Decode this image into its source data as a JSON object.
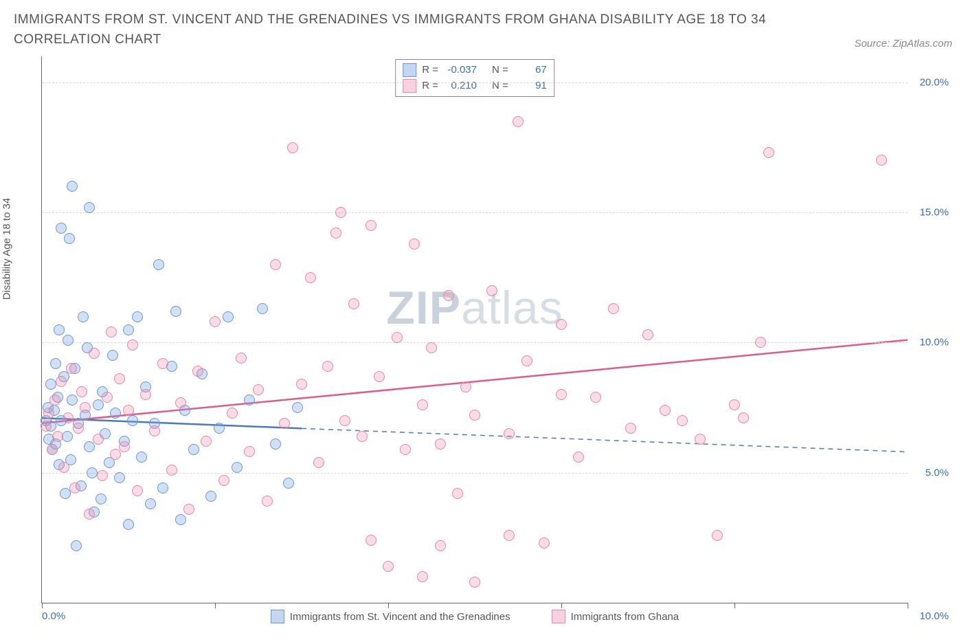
{
  "title": "IMMIGRANTS FROM ST. VINCENT AND THE GRENADINES VS IMMIGRANTS FROM GHANA DISABILITY AGE 18 TO 34 CORRELATION CHART",
  "source": "Source: ZipAtlas.com",
  "y_axis_label": "Disability Age 18 to 34",
  "watermark_a": "ZIP",
  "watermark_b": "atlas",
  "chart": {
    "type": "scatter",
    "xlim": [
      0,
      10
    ],
    "ylim": [
      0,
      21
    ],
    "x_ticks": [
      0,
      2,
      4,
      6,
      8,
      10
    ],
    "x_tick_labels": {
      "first": "0.0%",
      "last": "10.0%"
    },
    "y_ticks": [
      5,
      10,
      15,
      20
    ],
    "y_tick_labels": [
      "5.0%",
      "10.0%",
      "15.0%",
      "20.0%"
    ],
    "background_color": "#ffffff",
    "grid_color": "#d8d8d8",
    "axis_color": "#666666",
    "point_radius": 8,
    "colors": {
      "blue_fill": "rgba(121,167,225,0.35)",
      "blue_stroke": "#6a98d4",
      "pink_fill": "rgba(236,140,170,0.30)",
      "pink_stroke": "#e787a5",
      "label_text": "#3b6fb6"
    }
  },
  "series": [
    {
      "key": "svg",
      "label": "Immigrants from St. Vincent and the Grenadines",
      "color_class": "blue",
      "R_label": "R =",
      "R": "-0.037",
      "N_label": "N =",
      "N": "67",
      "regression": {
        "x1": 0,
        "y1": 7.1,
        "x2": 3.0,
        "y2": 6.7,
        "extend_x": 10,
        "extend_y": 5.8,
        "stroke": "#4a7ab8",
        "width": 2.5
      },
      "points": [
        [
          0.05,
          7.0
        ],
        [
          0.07,
          7.5
        ],
        [
          0.08,
          6.3
        ],
        [
          0.1,
          8.4
        ],
        [
          0.1,
          6.8
        ],
        [
          0.12,
          5.9
        ],
        [
          0.14,
          7.4
        ],
        [
          0.16,
          9.2
        ],
        [
          0.16,
          6.1
        ],
        [
          0.18,
          7.9
        ],
        [
          0.2,
          5.3
        ],
        [
          0.22,
          14.4
        ],
        [
          0.22,
          7.0
        ],
        [
          0.25,
          8.7
        ],
        [
          0.27,
          4.2
        ],
        [
          0.29,
          6.4
        ],
        [
          0.3,
          10.1
        ],
        [
          0.32,
          14.0
        ],
        [
          0.33,
          5.5
        ],
        [
          0.35,
          7.8
        ],
        [
          0.38,
          9.0
        ],
        [
          0.4,
          2.2
        ],
        [
          0.42,
          6.9
        ],
        [
          0.45,
          4.5
        ],
        [
          0.48,
          11.0
        ],
        [
          0.5,
          7.2
        ],
        [
          0.52,
          9.8
        ],
        [
          0.55,
          6.0
        ],
        [
          0.58,
          5.0
        ],
        [
          0.6,
          3.5
        ],
        [
          0.55,
          15.2
        ],
        [
          0.65,
          7.6
        ],
        [
          0.68,
          4.0
        ],
        [
          0.7,
          8.1
        ],
        [
          0.73,
          6.5
        ],
        [
          0.78,
          5.4
        ],
        [
          0.82,
          9.5
        ],
        [
          0.85,
          7.3
        ],
        [
          0.9,
          4.8
        ],
        [
          0.95,
          6.2
        ],
        [
          1.0,
          3.0
        ],
        [
          1.0,
          10.5
        ],
        [
          1.05,
          7.0
        ],
        [
          1.1,
          11.0
        ],
        [
          1.15,
          5.6
        ],
        [
          1.2,
          8.3
        ],
        [
          1.25,
          3.8
        ],
        [
          1.3,
          6.9
        ],
        [
          1.35,
          13.0
        ],
        [
          1.4,
          4.4
        ],
        [
          1.5,
          9.1
        ],
        [
          1.55,
          11.2
        ],
        [
          1.6,
          3.2
        ],
        [
          1.65,
          7.4
        ],
        [
          1.75,
          5.9
        ],
        [
          1.85,
          8.8
        ],
        [
          1.95,
          4.1
        ],
        [
          2.05,
          6.7
        ],
        [
          2.15,
          11.0
        ],
        [
          2.25,
          5.2
        ],
        [
          2.4,
          7.8
        ],
        [
          2.55,
          11.3
        ],
        [
          2.7,
          6.1
        ],
        [
          2.85,
          4.6
        ],
        [
          2.95,
          7.5
        ],
        [
          0.35,
          16.0
        ],
        [
          0.2,
          10.5
        ]
      ]
    },
    {
      "key": "ghana",
      "label": "Immigrants from Ghana",
      "color_class": "pink",
      "R_label": "R =",
      "R": "0.210",
      "N_label": "N =",
      "N": "91",
      "regression": {
        "x1": 0,
        "y1": 6.9,
        "x2": 10,
        "y2": 10.1,
        "stroke": "#e15b84",
        "width": 2.5
      },
      "points": [
        [
          0.05,
          6.8
        ],
        [
          0.08,
          7.3
        ],
        [
          0.12,
          5.9
        ],
        [
          0.15,
          7.8
        ],
        [
          0.18,
          6.4
        ],
        [
          0.22,
          8.5
        ],
        [
          0.25,
          5.2
        ],
        [
          0.3,
          7.1
        ],
        [
          0.34,
          9.0
        ],
        [
          0.38,
          4.4
        ],
        [
          0.42,
          6.7
        ],
        [
          0.46,
          8.1
        ],
        [
          0.5,
          7.5
        ],
        [
          0.55,
          3.4
        ],
        [
          0.6,
          9.6
        ],
        [
          0.65,
          6.3
        ],
        [
          0.7,
          4.9
        ],
        [
          0.75,
          7.9
        ],
        [
          0.8,
          10.4
        ],
        [
          0.85,
          5.7
        ],
        [
          0.9,
          8.6
        ],
        [
          0.95,
          6.0
        ],
        [
          1.0,
          7.4
        ],
        [
          1.05,
          9.9
        ],
        [
          1.1,
          4.3
        ],
        [
          1.2,
          8.0
        ],
        [
          1.3,
          6.6
        ],
        [
          1.4,
          9.2
        ],
        [
          1.5,
          5.1
        ],
        [
          1.6,
          7.7
        ],
        [
          1.7,
          3.6
        ],
        [
          1.8,
          8.9
        ],
        [
          1.9,
          6.2
        ],
        [
          2.0,
          10.8
        ],
        [
          2.1,
          4.7
        ],
        [
          2.2,
          7.3
        ],
        [
          2.3,
          9.4
        ],
        [
          2.4,
          5.8
        ],
        [
          2.5,
          8.2
        ],
        [
          2.6,
          3.9
        ],
        [
          2.7,
          13.0
        ],
        [
          2.8,
          6.9
        ],
        [
          2.9,
          17.5
        ],
        [
          3.0,
          8.4
        ],
        [
          3.1,
          12.5
        ],
        [
          3.2,
          5.4
        ],
        [
          3.3,
          9.1
        ],
        [
          3.4,
          14.2
        ],
        [
          3.5,
          7.0
        ],
        [
          3.6,
          11.5
        ],
        [
          3.45,
          15.0
        ],
        [
          3.7,
          6.4
        ],
        [
          3.8,
          14.5
        ],
        [
          3.9,
          8.7
        ],
        [
          4.0,
          1.4
        ],
        [
          4.1,
          10.2
        ],
        [
          4.2,
          5.9
        ],
        [
          4.3,
          13.8
        ],
        [
          4.4,
          7.6
        ],
        [
          4.4,
          1.0
        ],
        [
          4.5,
          9.8
        ],
        [
          4.6,
          6.1
        ],
        [
          4.7,
          11.8
        ],
        [
          4.8,
          4.2
        ],
        [
          4.9,
          8.3
        ],
        [
          5.0,
          7.2
        ],
        [
          5.2,
          12.0
        ],
        [
          5.4,
          6.5
        ],
        [
          5.6,
          9.3
        ],
        [
          5.8,
          2.3
        ],
        [
          5.5,
          18.5
        ],
        [
          5.0,
          0.8
        ],
        [
          6.0,
          8.0
        ],
        [
          6.0,
          10.7
        ],
        [
          6.2,
          5.6
        ],
        [
          6.4,
          7.9
        ],
        [
          6.6,
          11.3
        ],
        [
          6.8,
          6.7
        ],
        [
          7.0,
          10.3
        ],
        [
          7.2,
          7.4
        ],
        [
          7.4,
          7.0
        ],
        [
          7.6,
          6.3
        ],
        [
          7.8,
          2.6
        ],
        [
          8.0,
          7.6
        ],
        [
          8.1,
          7.1
        ],
        [
          8.3,
          10.0
        ],
        [
          8.4,
          17.3
        ],
        [
          9.7,
          17.0
        ],
        [
          5.4,
          2.6
        ],
        [
          4.6,
          2.2
        ],
        [
          3.8,
          2.4
        ]
      ]
    }
  ],
  "legend": {
    "series1": "Immigrants from St. Vincent and the Grenadines",
    "series2": "Immigrants from Ghana"
  }
}
